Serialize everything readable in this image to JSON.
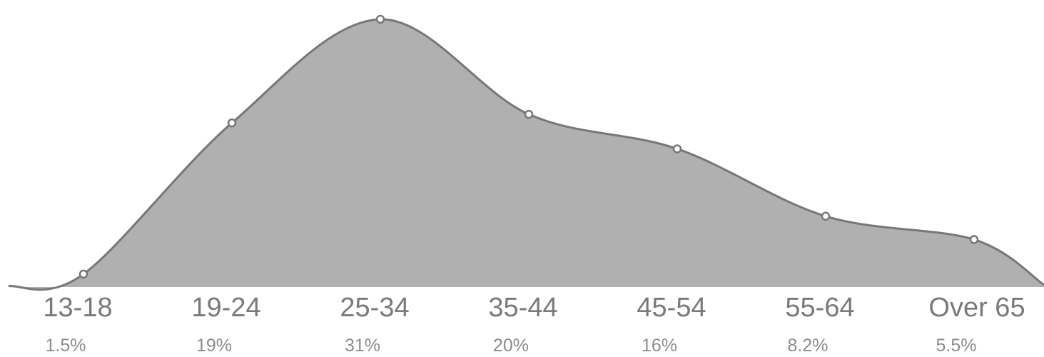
{
  "chart_data": {
    "type": "area",
    "categories": [
      "13-18",
      "19-24",
      "25-34",
      "35-44",
      "45-54",
      "55-64",
      "Over 65"
    ],
    "values": [
      1.5,
      19,
      31,
      20,
      16,
      8.2,
      5.5
    ],
    "value_labels": [
      "1.5%",
      "19%",
      "31%",
      "20%",
      "16%",
      "8.2%",
      "5.5%"
    ],
    "unit": "%",
    "ylim": [
      0,
      33
    ],
    "grid": false,
    "legend": "none",
    "colors": {
      "fill": "#b0b0b0",
      "stroke": "#777777",
      "marker_fill": "#ffffff",
      "marker_stroke": "#777777",
      "category_text": "#7a7a7a",
      "value_text": "#8c8c8c"
    }
  }
}
